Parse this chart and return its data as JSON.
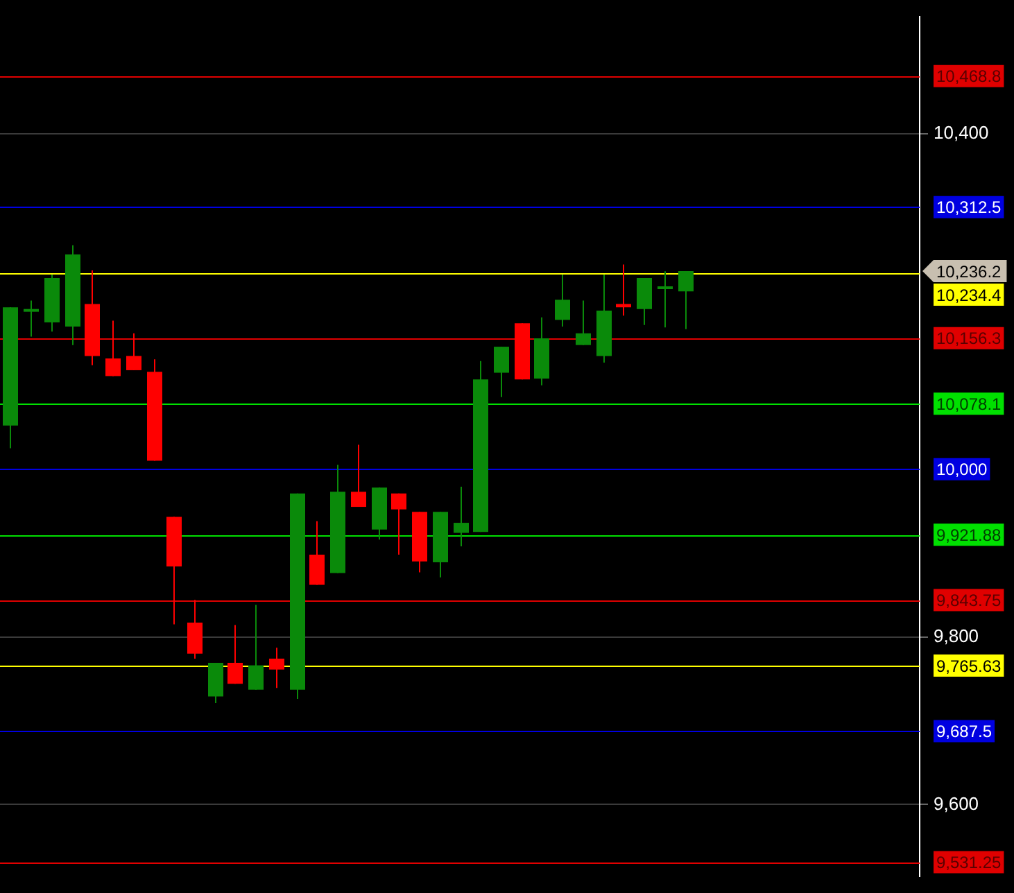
{
  "chart_data": {
    "type": "candlestick",
    "categories": [
      null,
      null,
      null,
      null,
      null,
      null,
      null,
      null,
      null,
      null,
      null,
      null,
      null,
      null,
      null,
      null,
      null,
      null,
      null,
      null,
      null,
      null,
      null,
      null,
      null,
      null,
      null,
      null,
      null,
      null,
      null,
      null,
      null,
      null,
      null,
      null,
      null,
      null,
      null,
      null,
      null,
      null,
      null,
      null,
      null
    ],
    "ohlc": [
      [
        10052,
        10193,
        10025,
        10193
      ],
      [
        10188,
        10201,
        10158,
        10191
      ],
      [
        10175,
        10232,
        10164,
        10228
      ],
      [
        10170,
        10267,
        10148,
        10256
      ],
      [
        10197,
        10237,
        10124,
        10135
      ],
      [
        10132,
        10177,
        10111,
        10111
      ],
      [
        10135,
        10162,
        10118,
        10118
      ],
      [
        10116,
        10131,
        10010,
        10010
      ],
      [
        9943,
        9943,
        9815,
        9884
      ],
      [
        9817,
        9844,
        9774,
        9780
      ],
      [
        9729,
        9769,
        9721,
        9769
      ],
      [
        9769,
        9814,
        9744,
        9744
      ],
      [
        9737,
        9838,
        9737,
        9766
      ],
      [
        9774,
        9787,
        9739,
        9761
      ],
      [
        9737,
        9971,
        9726,
        9971
      ],
      [
        9898,
        9938,
        9862,
        9862
      ],
      [
        9876,
        10005,
        9876,
        9973
      ],
      [
        9973,
        10029,
        9955,
        9955
      ],
      [
        9928,
        9978,
        9916,
        9978
      ],
      [
        9971,
        9971,
        9898,
        9952
      ],
      [
        9949,
        9949,
        9877,
        9890
      ],
      [
        9889,
        9949,
        9871,
        9949
      ],
      [
        9924,
        9979,
        9908,
        9936
      ],
      [
        9925,
        10129,
        9925,
        10107
      ],
      [
        10115,
        10146,
        10086,
        10146
      ],
      [
        10174,
        10174,
        10107,
        10107
      ],
      [
        10108,
        10181,
        10100,
        10156
      ],
      [
        10178,
        10232,
        10170,
        10202
      ],
      [
        10148,
        10201,
        10148,
        10162
      ],
      [
        10135,
        10232,
        10127,
        10189
      ],
      [
        10197,
        10244,
        10183,
        10193
      ],
      [
        10191,
        10228,
        10172,
        10228
      ],
      [
        10215,
        10236,
        10169,
        10218
      ],
      [
        10212,
        10236.2,
        10167,
        10236.2
      ],
      null,
      null,
      null,
      null,
      null,
      null,
      null,
      null,
      null,
      null,
      null
    ],
    "colors": [
      "#0a8a0a",
      "#0a8a0a",
      "#0a8a0a",
      "#0a8a0a",
      "#ff0000",
      "#ff0000",
      "#ff0000",
      "#ff0000",
      "#ff0000",
      "#ff0000",
      "#0a8a0a",
      "#ff0000",
      "#0a8a0a",
      "#ff0000",
      "#0a8a0a",
      "#ff0000",
      "#0a8a0a",
      "#ff0000",
      "#0a8a0a",
      "#ff0000",
      "#ff0000",
      "#0a8a0a",
      "#0a8a0a",
      "#0a8a0a",
      "#0a8a0a",
      "#ff0000",
      "#0a8a0a",
      "#0a8a0a",
      "#0a8a0a",
      "#0a8a0a",
      "#ff0000",
      "#0a8a0a",
      "#0a8a0a",
      "#0a8a0a",
      null,
      null,
      null,
      null,
      null,
      null,
      null,
      null,
      null,
      null,
      null
    ],
    "ylim": [
      9514,
      10540
    ],
    "yticks": [
      {
        "value": 9600,
        "label": "9,600"
      },
      {
        "value": 9800,
        "label": "9,800"
      },
      {
        "value": 10400,
        "label": "10,400"
      }
    ],
    "grid": "y",
    "tick_labels": "y",
    "ref_lines": [
      {
        "axis": "y",
        "value": 10468.8,
        "label": "10,468.8",
        "color": "#e00000"
      },
      {
        "axis": "y",
        "value": 10312.5,
        "label": "10,312.5",
        "color": "#0000e0"
      },
      {
        "axis": "y",
        "value": 10234.4,
        "label": "10,234.4",
        "color": "#ffff00"
      },
      {
        "axis": "y",
        "value": 10156.3,
        "label": "10,156.3",
        "color": "#e00000"
      },
      {
        "axis": "y",
        "value": 10078.1,
        "label": "10,078.1",
        "color": "#00e000"
      },
      {
        "axis": "y",
        "value": 10000,
        "label": "10,000",
        "color": "#0000e0"
      },
      {
        "axis": "y",
        "value": 9921.88,
        "label": "9,921.88",
        "color": "#00e000"
      },
      {
        "axis": "y",
        "value": 9843.75,
        "label": "9,843.75",
        "color": "#e00000"
      },
      {
        "axis": "y",
        "value": 9765.63,
        "label": "9,765.63",
        "color": "#ffff00"
      },
      {
        "axis": "y",
        "value": 9687.5,
        "label": "9,687.5",
        "color": "#0000e0"
      },
      {
        "axis": "y",
        "value": 9531.25,
        "label": "9,531.25",
        "color": "#e00000"
      }
    ],
    "annotations": [
      "10,236.2"
    ]
  }
}
